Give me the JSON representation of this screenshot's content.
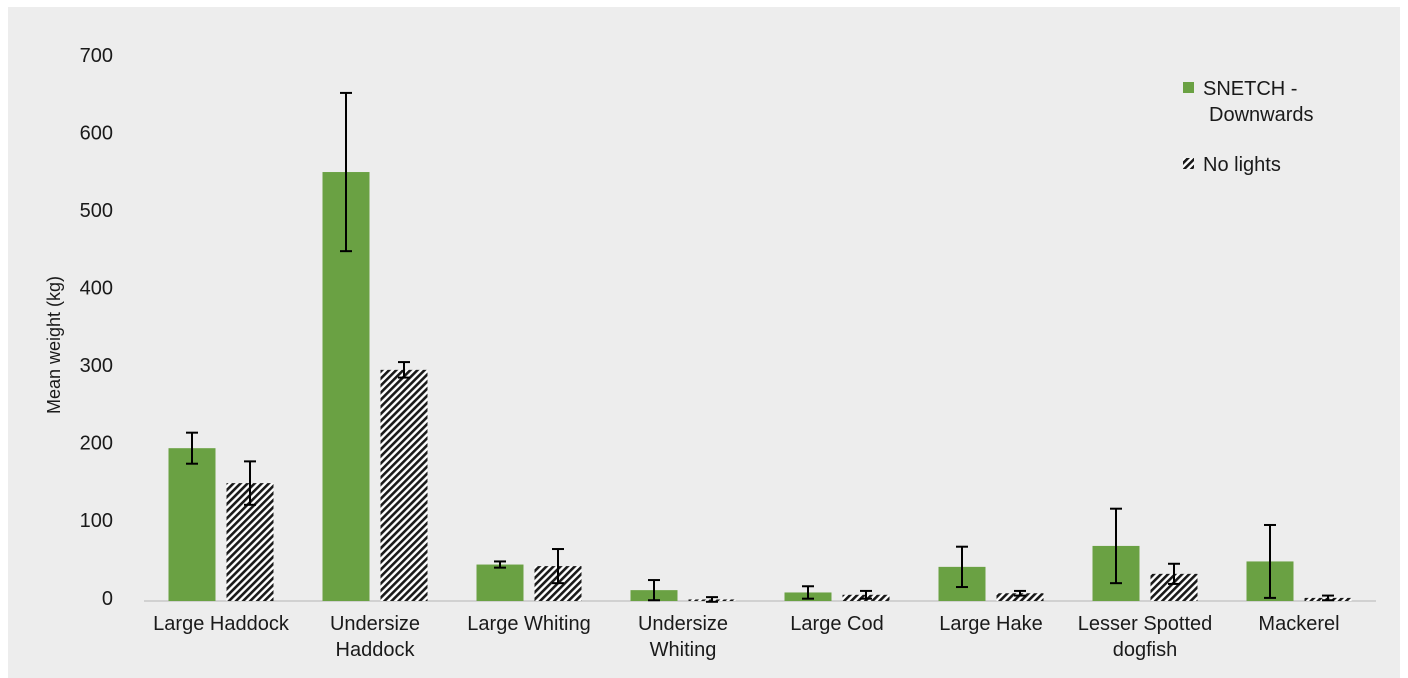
{
  "colors": {
    "background": "#ededed",
    "series_green": "#6aa143",
    "hatch_dark": "#1a1a1a",
    "hatch_light": "#ffffff",
    "error_bar": "#000000",
    "axis_line": "#c8c8c8"
  },
  "chart_data": {
    "type": "bar",
    "title": "",
    "xlabel": "",
    "ylabel": "Mean weight (kg)",
    "ylim": [
      0,
      700
    ],
    "yticks": [
      0,
      100,
      200,
      300,
      400,
      500,
      600,
      700
    ],
    "grid": false,
    "legend_position": "top-right",
    "categories": [
      [
        "Large Haddock"
      ],
      [
        "Undersize",
        "Haddock"
      ],
      [
        "Large Whiting"
      ],
      [
        "Undersize",
        "Whiting"
      ],
      [
        "Large Cod"
      ],
      [
        "Large Hake"
      ],
      [
        "Lesser Spotted",
        "dogfish"
      ],
      [
        "Mackerel"
      ]
    ],
    "series": [
      {
        "name": [
          "SNETCH -",
          "Downwards"
        ],
        "fill": "solid",
        "values": [
          197,
          553,
          47,
          14,
          11,
          44,
          71,
          51
        ],
        "error": [
          20,
          102,
          4,
          13,
          8,
          26,
          48,
          47
        ]
      },
      {
        "name": [
          "No lights"
        ],
        "fill": "hatched",
        "values": [
          152,
          298,
          45,
          2,
          8,
          10,
          35,
          4
        ],
        "error": [
          28,
          10,
          22,
          3,
          5,
          3,
          13,
          3
        ]
      }
    ]
  }
}
